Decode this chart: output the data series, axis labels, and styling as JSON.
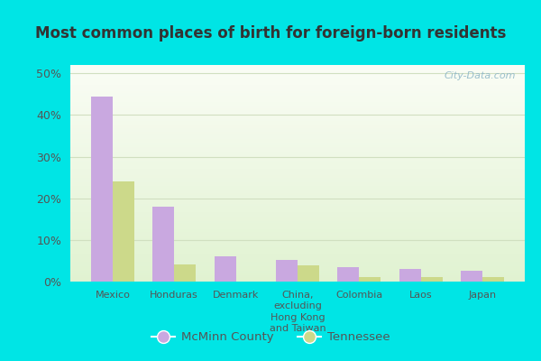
{
  "title": "Most common places of birth for foreign-born residents",
  "categories": [
    "Mexico",
    "Honduras",
    "Denmark",
    "China,\nexcluding\nHong Kong\nand Taiwan",
    "Colombia",
    "Laos",
    "Japan"
  ],
  "mcminn": [
    44.5,
    18.0,
    6.0,
    5.2,
    3.5,
    3.0,
    2.5
  ],
  "tennessee": [
    24.0,
    4.2,
    0.0,
    4.0,
    1.0,
    1.0,
    1.0
  ],
  "mcminn_color": "#c9a8e0",
  "tennessee_color": "#ccd98a",
  "bar_width": 0.35,
  "ylim": [
    0,
    52
  ],
  "yticks": [
    0,
    10,
    20,
    30,
    40,
    50
  ],
  "ytick_labels": [
    "0%",
    "10%",
    "20%",
    "30%",
    "40%",
    "50%"
  ],
  "legend_mcminn": "McMinn County",
  "legend_tennessee": "Tennessee",
  "watermark": "City-Data.com",
  "outer_bg": "#00e5e5",
  "grid_color": "#d0dfc0",
  "title_color": "#333333"
}
